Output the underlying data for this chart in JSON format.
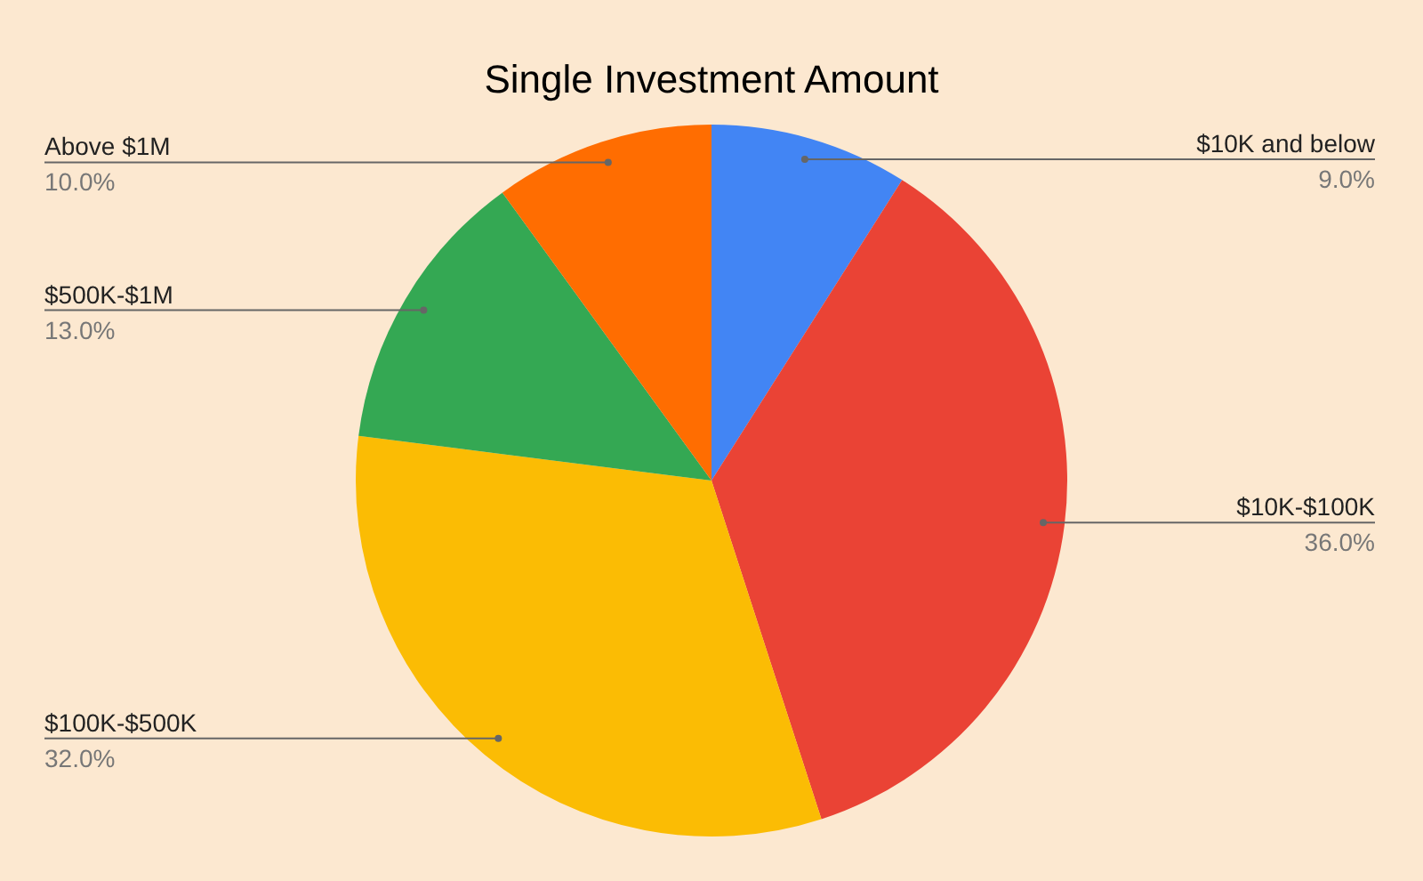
{
  "chart_data": {
    "type": "pie",
    "title": "Single Investment Amount",
    "categories": [
      "$10K and below",
      "$10K-$100K",
      "$100K-$500K",
      "$500K-$1M",
      "Above $1M"
    ],
    "values": [
      9,
      36,
      32,
      13,
      10
    ],
    "value_labels": [
      "9.0%",
      "36.0%",
      "32.0%",
      "13.0%",
      "10.0%"
    ],
    "colors": [
      "#4285f4",
      "#ea4335",
      "#fbbc04",
      "#34a853",
      "#ff6d01"
    ],
    "legend": false
  }
}
